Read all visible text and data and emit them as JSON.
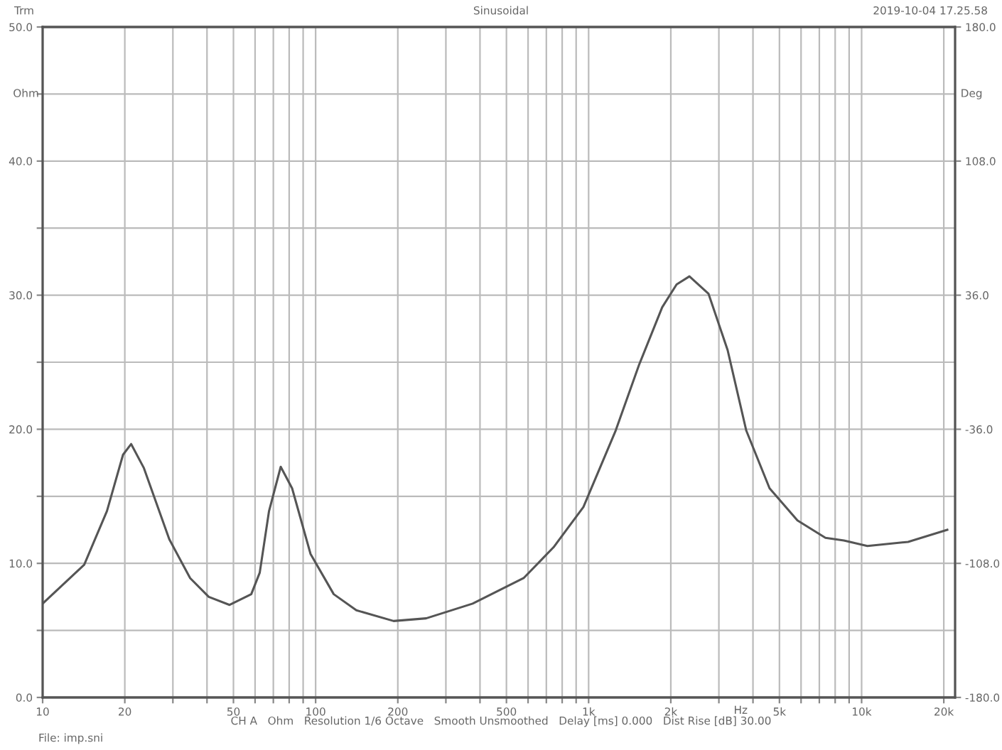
{
  "chart_data": {
    "type": "line",
    "title": "Sinusoidal",
    "xlabel": "Hz",
    "ylabel": "Ohm",
    "y2label": "Deg",
    "annotations": [
      "Trm",
      "2019-10-04 17.25.58",
      "CH A   Ohm   Resolution 1/6 Octave   Smooth Unsmoothed   Delay [ms] 0.000   Dist Rise [dB] 30.00",
      "File: imp.sni"
    ],
    "log": "x",
    "grid": true,
    "marker": "none",
    "line_style": "solid",
    "xlim": [
      10,
      22000
    ],
    "ylim": [
      0,
      50
    ],
    "y2lim": [
      -180,
      180
    ],
    "xticks": [
      10,
      20,
      {
        "value": 30,
        "label": null
      },
      {
        "value": 40,
        "label": null
      },
      50,
      {
        "value": 60,
        "label": null
      },
      {
        "value": 70,
        "label": null
      },
      {
        "value": 80,
        "label": null
      },
      {
        "value": 90,
        "label": null
      },
      100,
      200,
      {
        "value": 300,
        "label": null
      },
      {
        "value": 400,
        "label": null
      },
      500,
      {
        "value": 600,
        "label": null
      },
      {
        "value": 700,
        "label": null
      },
      {
        "value": 800,
        "label": null
      },
      {
        "value": 900,
        "label": null
      },
      {
        "value": 1000,
        "label": "1k"
      },
      {
        "value": 2000,
        "label": "2k"
      },
      {
        "value": 3000,
        "label": null
      },
      {
        "value": 4000,
        "label": null
      },
      {
        "value": 5000,
        "label": "5k"
      },
      {
        "value": 6000,
        "label": null
      },
      {
        "value": 7000,
        "label": null
      },
      {
        "value": 8000,
        "label": null
      },
      {
        "value": 9000,
        "label": null
      },
      {
        "value": 10000,
        "label": "10k"
      },
      {
        "value": 20000,
        "label": "20k"
      }
    ],
    "yticks": [
      {
        "value": 0,
        "label": "0.0"
      },
      {
        "value": 5,
        "label": null
      },
      {
        "value": 10,
        "label": "10.0"
      },
      {
        "value": 15,
        "label": null
      },
      {
        "value": 20,
        "label": "20.0"
      },
      {
        "value": 25,
        "label": null
      },
      {
        "value": 30,
        "label": "30.0"
      },
      {
        "value": 35,
        "label": null
      },
      {
        "value": 40,
        "label": "40.0"
      },
      {
        "value": 45,
        "label": null
      },
      {
        "value": 50,
        "label": "50.0"
      }
    ],
    "y2ticks": [
      {
        "value": -180,
        "label": "-180.0"
      },
      {
        "value": -108,
        "label": "-108.0"
      },
      {
        "value": -36,
        "label": "-36.0"
      },
      {
        "value": 36,
        "label": "36.0"
      },
      {
        "value": 108,
        "label": "108.0"
      },
      {
        "value": 180,
        "label": "180.0"
      }
    ],
    "series": [
      {
        "color": "#555555",
        "x": [
          10,
          14.2,
          17.2,
          19.7,
          21.1,
          23.5,
          29.1,
          34.7,
          40.6,
          48.4,
          58.1,
          62.4,
          67.5,
          74.5,
          82,
          95.8,
          116.5,
          141,
          193,
          254,
          376,
          578,
          744,
          957,
          1256,
          1530,
          1860,
          2100,
          2340,
          2750,
          3230,
          3780,
          4600,
          5820,
          7370,
          8610,
          10500,
          14800,
          20600
        ],
        "values": [
          7.0,
          9.9,
          13.9,
          18.1,
          18.9,
          17.1,
          11.8,
          8.9,
          7.5,
          6.9,
          7.7,
          9.3,
          13.9,
          17.2,
          15.6,
          10.7,
          7.7,
          6.5,
          5.7,
          5.9,
          7.0,
          8.9,
          11.2,
          14.2,
          19.9,
          24.8,
          29.1,
          30.8,
          31.4,
          30.1,
          25.9,
          19.9,
          15.6,
          13.2,
          11.9,
          11.7,
          11.3,
          11.6,
          12.5
        ]
      }
    ]
  }
}
